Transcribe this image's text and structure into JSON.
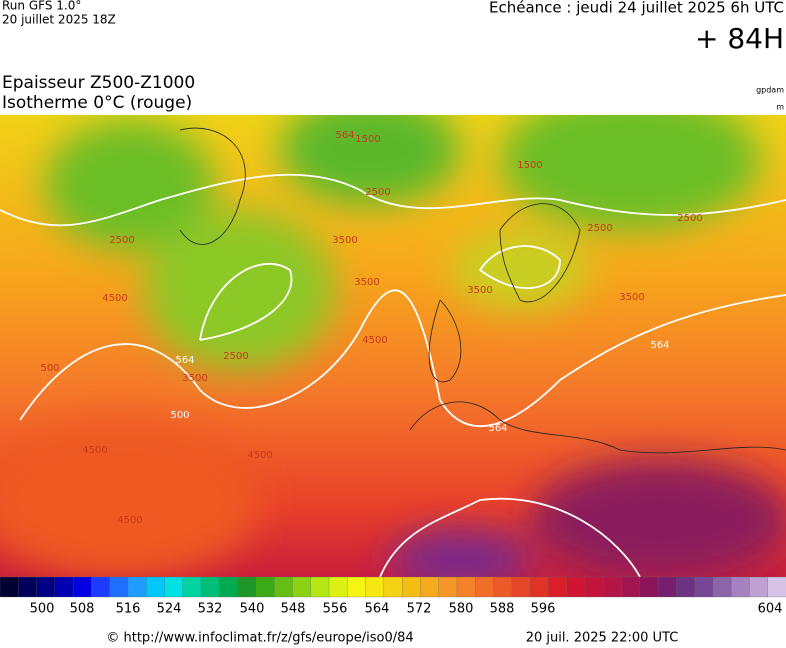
{
  "header": {
    "run": "Run GFS 1.0°",
    "run_date": "20 juillet 2025 18Z",
    "echeance": "Echéance : jeudi 24 juillet 2025 6h UTC",
    "lead": "+ 84H",
    "title_line1": "Epaisseur Z500-Z1000",
    "title_line2": "Isotherme 0°C (rouge)",
    "unit1": "gpdam",
    "unit2": "m"
  },
  "map": {
    "contour_labels": [
      "564",
      "564",
      "564",
      "564",
      "500",
      "1500",
      "2500",
      "2500",
      "2500",
      "2500",
      "3500",
      "3500",
      "3500",
      "3500",
      "3500",
      "4500",
      "4500",
      "4500",
      "4500",
      "4500",
      "500",
      "1500",
      "2500"
    ]
  },
  "colorbar": {
    "labels": [
      "500",
      "508",
      "516",
      "524",
      "532",
      "540",
      "548",
      "556",
      "564",
      "572",
      "580",
      "588",
      "596",
      "604"
    ]
  },
  "footer": {
    "url": "© http://www.infoclimat.fr/z/gfs/europe/iso0/84",
    "timestamp": "20 juil. 2025 22:00 UTC"
  }
}
